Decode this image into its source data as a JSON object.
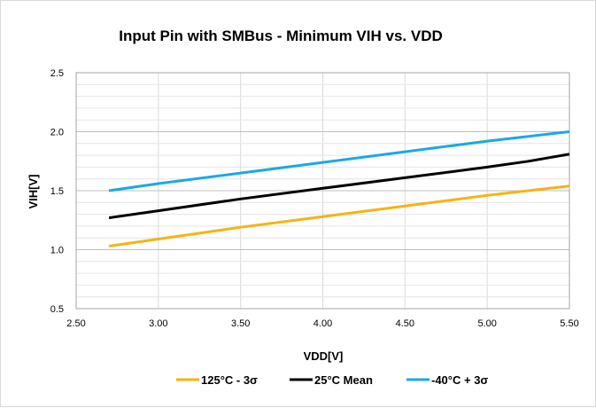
{
  "chart_data": {
    "type": "line",
    "title": "Input Pin with SMBus - Minimum VIH vs. VDD",
    "xlabel": "VDD[V]",
    "ylabel": "VIH[V]",
    "xlim": [
      2.5,
      5.5
    ],
    "ylim": [
      0.5,
      2.5
    ],
    "x_ticks": [
      "2.50",
      "3.00",
      "3.50",
      "4.00",
      "4.50",
      "5.00",
      "5.50"
    ],
    "y_ticks": [
      "0.5",
      "1.0",
      "1.5",
      "2.0",
      "2.5"
    ],
    "grid": true,
    "legend_position": "bottom",
    "series": [
      {
        "name": "125°C - 3σ",
        "color": "#f5b415",
        "x": [
          2.7,
          3.0,
          3.5,
          4.0,
          4.5,
          5.0,
          5.5
        ],
        "y": [
          1.03,
          1.09,
          1.19,
          1.28,
          1.37,
          1.46,
          1.54
        ]
      },
      {
        "name": "25°C Mean",
        "color": "#000000",
        "x": [
          2.7,
          3.0,
          3.5,
          4.0,
          4.5,
          5.0,
          5.25,
          5.5
        ],
        "y": [
          1.27,
          1.33,
          1.43,
          1.52,
          1.61,
          1.7,
          1.75,
          1.81
        ]
      },
      {
        "name": "-40°C + 3σ",
        "color": "#1aa9e5",
        "x": [
          2.7,
          3.0,
          3.5,
          4.0,
          4.5,
          5.0,
          5.5
        ],
        "y": [
          1.5,
          1.56,
          1.65,
          1.74,
          1.83,
          1.92,
          2.0
        ]
      }
    ]
  }
}
